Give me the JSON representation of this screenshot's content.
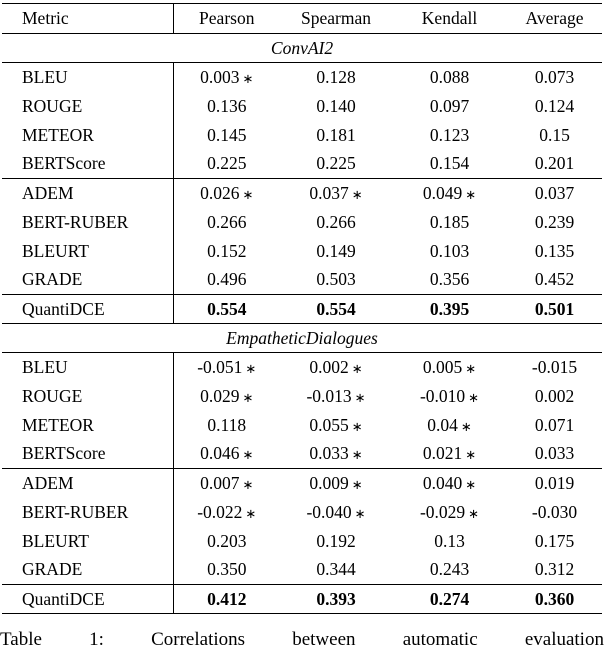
{
  "table": {
    "columns": [
      "Metric",
      "Pearson",
      "Spearman",
      "Kendall",
      "Average"
    ],
    "significance_marker": "∗",
    "sections": [
      {
        "title": "ConvAI2",
        "groups": [
          [
            {
              "metric": "BLEU",
              "values": [
                "0.003",
                "0.128",
                "0.088",
                "0.073"
              ],
              "stars": [
                true,
                false,
                false,
                false
              ],
              "bold": false
            },
            {
              "metric": "ROUGE",
              "values": [
                "0.136",
                "0.140",
                "0.097",
                "0.124"
              ],
              "stars": [
                false,
                false,
                false,
                false
              ],
              "bold": false
            },
            {
              "metric": "METEOR",
              "values": [
                "0.145",
                "0.181",
                "0.123",
                "0.15"
              ],
              "stars": [
                false,
                false,
                false,
                false
              ],
              "bold": false
            },
            {
              "metric": "BERTScore",
              "values": [
                "0.225",
                "0.225",
                "0.154",
                "0.201"
              ],
              "stars": [
                false,
                false,
                false,
                false
              ],
              "bold": false
            }
          ],
          [
            {
              "metric": "ADEM",
              "values": [
                "0.026",
                "0.037",
                "0.049",
                "0.037"
              ],
              "stars": [
                true,
                true,
                true,
                false
              ],
              "bold": false
            },
            {
              "metric": "BERT-RUBER",
              "values": [
                "0.266",
                "0.266",
                "0.185",
                "0.239"
              ],
              "stars": [
                false,
                false,
                false,
                false
              ],
              "bold": false
            },
            {
              "metric": "BLEURT",
              "values": [
                "0.152",
                "0.149",
                "0.103",
                "0.135"
              ],
              "stars": [
                false,
                false,
                false,
                false
              ],
              "bold": false
            },
            {
              "metric": "GRADE",
              "values": [
                "0.496",
                "0.503",
                "0.356",
                "0.452"
              ],
              "stars": [
                false,
                false,
                false,
                false
              ],
              "bold": false
            }
          ],
          [
            {
              "metric": "QuantiDCE",
              "values": [
                "0.554",
                "0.554",
                "0.395",
                "0.501"
              ],
              "stars": [
                false,
                false,
                false,
                false
              ],
              "bold": true
            }
          ]
        ]
      },
      {
        "title": "EmpatheticDialogues",
        "groups": [
          [
            {
              "metric": "BLEU",
              "values": [
                "-0.051",
                "0.002",
                "0.005",
                "-0.015"
              ],
              "stars": [
                true,
                true,
                true,
                false
              ],
              "bold": false
            },
            {
              "metric": "ROUGE",
              "values": [
                "0.029",
                "-0.013",
                "-0.010",
                "0.002"
              ],
              "stars": [
                true,
                true,
                true,
                false
              ],
              "bold": false
            },
            {
              "metric": "METEOR",
              "values": [
                "0.118",
                "0.055",
                "0.04",
                "0.071"
              ],
              "stars": [
                false,
                true,
                true,
                false
              ],
              "bold": false
            },
            {
              "metric": "BERTScore",
              "values": [
                "0.046",
                "0.033",
                "0.021",
                "0.033"
              ],
              "stars": [
                true,
                true,
                true,
                false
              ],
              "bold": false
            }
          ],
          [
            {
              "metric": "ADEM",
              "values": [
                "0.007",
                "0.009",
                "0.040",
                "0.019"
              ],
              "stars": [
                true,
                true,
                true,
                false
              ],
              "bold": false
            },
            {
              "metric": "BERT-RUBER",
              "values": [
                "-0.022",
                "-0.040",
                "-0.029",
                "-0.030"
              ],
              "stars": [
                true,
                true,
                true,
                false
              ],
              "bold": false
            },
            {
              "metric": "BLEURT",
              "values": [
                "0.203",
                "0.192",
                "0.13",
                "0.175"
              ],
              "stars": [
                false,
                false,
                false,
                false
              ],
              "bold": false
            },
            {
              "metric": "GRADE",
              "values": [
                "0.350",
                "0.344",
                "0.243",
                "0.312"
              ],
              "stars": [
                false,
                false,
                false,
                false
              ],
              "bold": false
            }
          ],
          [
            {
              "metric": "QuantiDCE",
              "values": [
                "0.412",
                "0.393",
                "0.274",
                "0.360"
              ],
              "stars": [
                false,
                false,
                false,
                false
              ],
              "bold": true
            }
          ]
        ]
      }
    ]
  },
  "caption": {
    "words": [
      "Table",
      "1:",
      "Correlations",
      "between",
      "automatic",
      "evaluation"
    ]
  }
}
